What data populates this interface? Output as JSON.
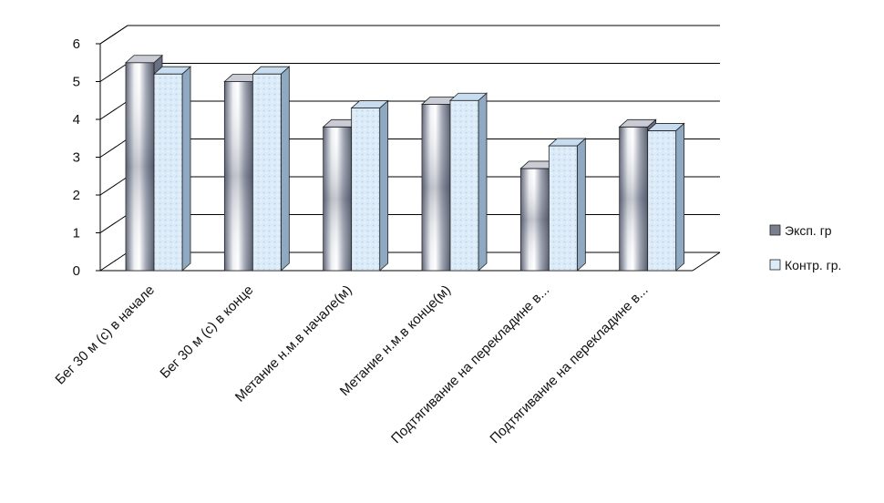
{
  "chart_data": {
    "type": "bar",
    "title": "",
    "xlabel": "",
    "ylabel": "",
    "ylim": [
      0,
      6
    ],
    "yticks": [
      0,
      1,
      2,
      3,
      4,
      5,
      6
    ],
    "grid": true,
    "legend_position": "right",
    "categories": [
      "Бег 30 м (с) в начале",
      "Бег 30 м (с) в конце",
      "Метание н.м.в начале(м)",
      "Метание н.м.в конце(м)",
      "Подтягивание на перекладине в...",
      "Подтягивание на перекладине в..."
    ],
    "series": [
      {
        "name": "Эксп. гр",
        "values": [
          5.5,
          5.0,
          3.8,
          4.4,
          2.7,
          3.8
        ]
      },
      {
        "name": "Контр. гр.",
        "values": [
          5.2,
          5.2,
          4.3,
          4.5,
          3.3,
          3.7
        ]
      }
    ]
  },
  "colors": {
    "series1_light": "#ffffff",
    "series1_dark": "#5c6275",
    "series2_face": "#dcebf8",
    "series2_edge": "#aac4dc",
    "grid": "#000000"
  }
}
